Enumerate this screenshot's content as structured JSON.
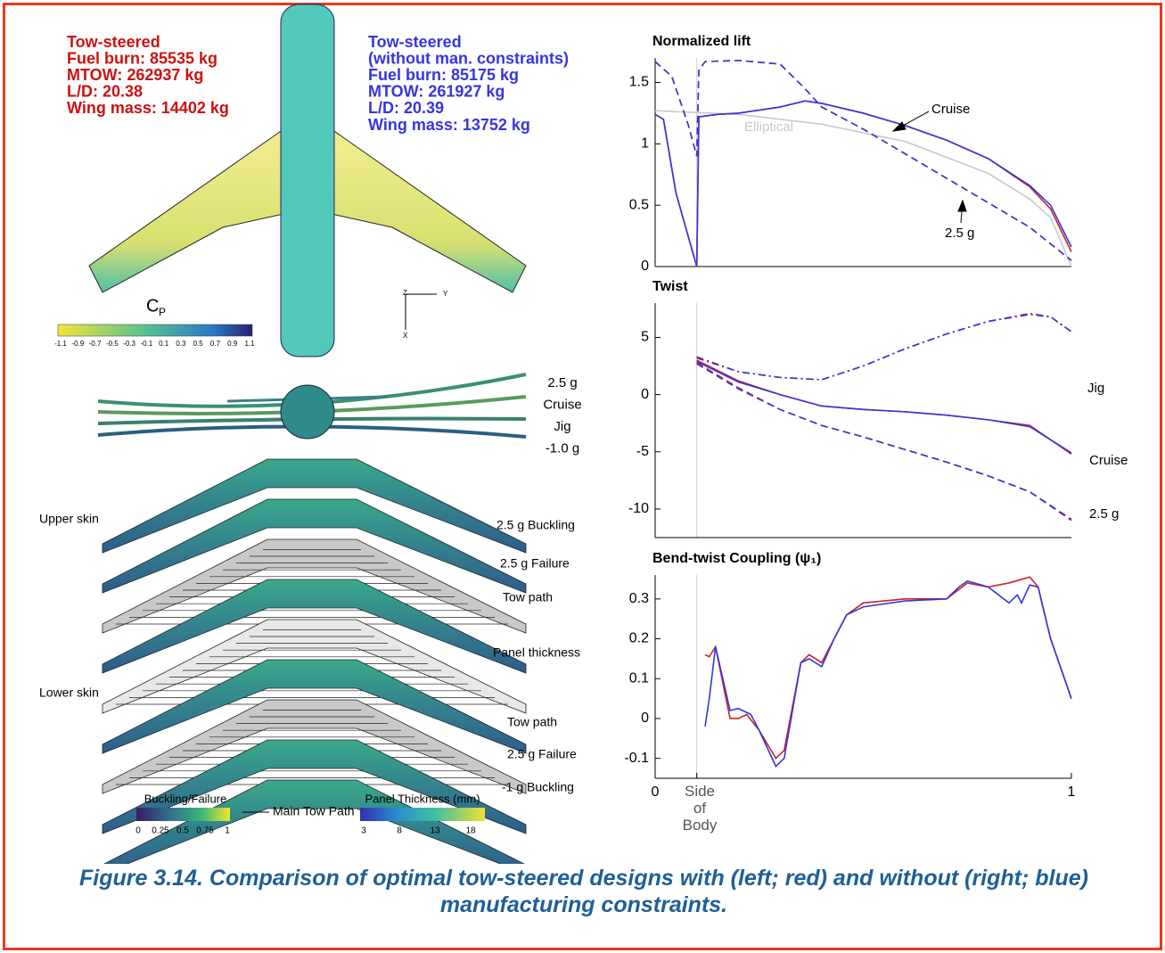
{
  "designs": [
    {
      "color": "#cc1111",
      "lines": [
        "Tow-steered",
        "Fuel burn: 85535 kg",
        "MTOW: 262937 kg",
        "L/D: 20.38",
        "Wing mass: 14402 kg"
      ]
    },
    {
      "color": "#3535e0",
      "lines": [
        "Tow-steered",
        "(without man. constraints)",
        "Fuel burn: 85175 kg",
        "MTOW:  261927 kg",
        "L/D: 20.39",
        "Wing mass: 13752 kg"
      ]
    }
  ],
  "cp_colorbar": {
    "label": "C",
    "subscript": "P",
    "ticks": [
      -1.1,
      -0.9,
      -0.7,
      -0.5,
      -0.3,
      -0.1,
      0.1,
      0.3,
      0.5,
      0.7,
      0.9,
      1.1
    ]
  },
  "triad": [
    "Z",
    "Y",
    "X"
  ],
  "load_cases": [
    "2.5 g",
    "Cruise",
    "Jig",
    "-1.0 g"
  ],
  "skin_labels": [
    "Upper skin",
    "Lower skin"
  ],
  "panel_labels": [
    "2.5 g Buckling",
    "2.5 g Failure",
    "Tow path",
    "Panel thickness",
    "Tow path",
    "2.5 g Failure",
    "-1 g Buckling"
  ],
  "legend": {
    "buckling": {
      "title": "Buckling/Failure",
      "ticks": [
        0,
        0.25,
        0.5,
        0.75,
        1
      ]
    },
    "tow": "Main Tow Path",
    "thickness": {
      "title": "Panel Thickness (mm)",
      "ticks": [
        3,
        8,
        13,
        18
      ]
    }
  },
  "caption": "Figure 3.14. Comparison of optimal tow-steered designs with (left; red) and without (right; blue) manufacturing constraints.",
  "chart_data": [
    {
      "type": "line",
      "title": "Normalized lift",
      "xlim": [
        0,
        1
      ],
      "ylim": [
        0,
        1.7
      ],
      "yticks": [
        0,
        0.5,
        1,
        1.5
      ],
      "annotations": [
        "Cruise",
        "2.5 g",
        "Elliptical"
      ],
      "series": [
        {
          "color": "#c8c8c8",
          "dash": "solid",
          "x": [
            0,
            0.2,
            0.4,
            0.6,
            0.8,
            0.9,
            0.95,
            1
          ],
          "values": [
            1.27,
            1.24,
            1.16,
            1.02,
            0.76,
            0.55,
            0.4,
            0
          ]
        },
        {
          "color": "#cc2222",
          "dash": "solid",
          "x": [
            0,
            0.02,
            0.05,
            0.1,
            0.105,
            0.15,
            0.2,
            0.3,
            0.36,
            0.4,
            0.5,
            0.6,
            0.7,
            0.8,
            0.9,
            0.95,
            1
          ],
          "values": [
            1.24,
            1.2,
            0.6,
            0,
            1.22,
            1.24,
            1.25,
            1.3,
            1.35,
            1.33,
            1.25,
            1.15,
            1.03,
            0.88,
            0.65,
            0.47,
            0.12
          ]
        },
        {
          "color": "#3535e0",
          "dash": "solid",
          "x": [
            0,
            0.02,
            0.05,
            0.1,
            0.105,
            0.15,
            0.2,
            0.3,
            0.36,
            0.4,
            0.5,
            0.6,
            0.7,
            0.8,
            0.9,
            0.95,
            1
          ],
          "values": [
            1.24,
            1.2,
            0.6,
            0,
            1.22,
            1.24,
            1.25,
            1.3,
            1.35,
            1.33,
            1.25,
            1.15,
            1.03,
            0.88,
            0.66,
            0.5,
            0.16
          ]
        },
        {
          "color": "#cc2222",
          "dash": "dashed",
          "x": [
            0,
            0.04,
            0.08,
            0.1,
            0.105,
            0.12,
            0.2,
            0.3,
            0.36,
            0.4,
            0.5,
            0.6,
            0.7,
            0.8,
            0.9,
            1
          ],
          "values": [
            1.67,
            1.55,
            1.15,
            0.9,
            1.6,
            1.67,
            1.68,
            1.65,
            1.45,
            1.3,
            1.12,
            0.92,
            0.72,
            0.52,
            0.32,
            0.05
          ]
        },
        {
          "color": "#3535e0",
          "dash": "dashed",
          "x": [
            0,
            0.04,
            0.08,
            0.1,
            0.105,
            0.12,
            0.2,
            0.3,
            0.36,
            0.4,
            0.5,
            0.6,
            0.7,
            0.8,
            0.9,
            1
          ],
          "values": [
            1.67,
            1.55,
            1.15,
            0.9,
            1.6,
            1.67,
            1.68,
            1.65,
            1.45,
            1.3,
            1.12,
            0.92,
            0.72,
            0.52,
            0.32,
            0.05
          ]
        }
      ]
    },
    {
      "type": "line",
      "title": "Twist",
      "xlim": [
        0,
        1
      ],
      "ylim": [
        -12.5,
        8
      ],
      "yticks": [
        -10,
        -5,
        0,
        5
      ],
      "annotations": [
        "Jig",
        "Cruise",
        "2.5 g"
      ],
      "series": [
        {
          "color": "#cc2222",
          "dash": "dashdot",
          "x": [
            0.1,
            0.2,
            0.3,
            0.4,
            0.5,
            0.6,
            0.7,
            0.8,
            0.9,
            0.95,
            1
          ],
          "values": [
            3.3,
            2.0,
            1.5,
            1.3,
            2.5,
            4.0,
            5.3,
            6.4,
            7.1,
            6.8,
            5.5
          ]
        },
        {
          "color": "#3535e0",
          "dash": "dashdot",
          "x": [
            0.1,
            0.2,
            0.3,
            0.4,
            0.5,
            0.6,
            0.7,
            0.8,
            0.9,
            0.95,
            1
          ],
          "values": [
            3.2,
            2.0,
            1.5,
            1.3,
            2.5,
            4.0,
            5.3,
            6.4,
            7.0,
            6.8,
            5.5
          ]
        },
        {
          "color": "#cc2222",
          "dash": "solid",
          "x": [
            0.1,
            0.2,
            0.3,
            0.4,
            0.5,
            0.6,
            0.7,
            0.8,
            0.9,
            1
          ],
          "values": [
            3.0,
            1.2,
            0,
            -1,
            -1.3,
            -1.5,
            -1.8,
            -2.2,
            -2.7,
            -5.2
          ]
        },
        {
          "color": "#3535e0",
          "dash": "solid",
          "x": [
            0.1,
            0.2,
            0.3,
            0.4,
            0.5,
            0.6,
            0.7,
            0.8,
            0.9,
            1
          ],
          "values": [
            2.9,
            1.1,
            0,
            -1,
            -1.3,
            -1.5,
            -1.8,
            -2.2,
            -2.8,
            -5.1
          ]
        },
        {
          "color": "#cc2222",
          "dash": "dashed",
          "x": [
            0.1,
            0.2,
            0.3,
            0.4,
            0.5,
            0.6,
            0.7,
            0.8,
            0.9,
            1
          ],
          "values": [
            2.8,
            0.6,
            -1.3,
            -2.7,
            -3.7,
            -4.8,
            -5.9,
            -7.1,
            -8.5,
            -11
          ]
        },
        {
          "color": "#3535e0",
          "dash": "dashed",
          "x": [
            0.1,
            0.2,
            0.3,
            0.4,
            0.5,
            0.6,
            0.7,
            0.8,
            0.9,
            1
          ],
          "values": [
            2.7,
            0.5,
            -1.3,
            -2.7,
            -3.7,
            -4.8,
            -5.9,
            -7.1,
            -8.5,
            -10.9
          ]
        }
      ]
    },
    {
      "type": "line",
      "title": "Bend-twist Coupling (ψ₁)",
      "xlim": [
        0,
        1
      ],
      "ylim": [
        -0.15,
        0.36
      ],
      "yticks": [
        -0.1,
        0,
        0.1,
        0.2,
        0.3
      ],
      "xticks": [
        0,
        {
          "value": 0.1,
          "label": "Side of Body"
        },
        1
      ],
      "series": [
        {
          "color": "#cc2222",
          "dash": "solid",
          "x": [
            0.12,
            0.13,
            0.145,
            0.18,
            0.2,
            0.22,
            0.25,
            0.29,
            0.31,
            0.35,
            0.37,
            0.4,
            0.43,
            0.46,
            0.5,
            0.6,
            0.7,
            0.75,
            0.8,
            0.85,
            0.9,
            0.92,
            0.95,
            1
          ],
          "values": [
            0.16,
            0.155,
            0.18,
            0,
            0,
            0.01,
            -0.03,
            -0.1,
            -0.08,
            0.14,
            0.16,
            0.14,
            0.2,
            0.26,
            0.29,
            0.3,
            0.3,
            0.34,
            0.33,
            0.34,
            0.355,
            0.33,
            0.2,
            0.05
          ]
        },
        {
          "color": "#3535e0",
          "dash": "solid",
          "x": [
            0.12,
            0.13,
            0.145,
            0.18,
            0.2,
            0.23,
            0.25,
            0.29,
            0.31,
            0.35,
            0.37,
            0.4,
            0.43,
            0.46,
            0.5,
            0.6,
            0.7,
            0.73,
            0.75,
            0.8,
            0.85,
            0.87,
            0.88,
            0.9,
            0.92,
            0.95,
            1
          ],
          "values": [
            -0.02,
            0.05,
            0.18,
            0.02,
            0.025,
            0.01,
            -0.03,
            -0.12,
            -0.1,
            0.14,
            0.15,
            0.13,
            0.2,
            0.26,
            0.28,
            0.295,
            0.3,
            0.33,
            0.345,
            0.33,
            0.29,
            0.31,
            0.29,
            0.335,
            0.33,
            0.2,
            0.05
          ]
        }
      ]
    }
  ]
}
